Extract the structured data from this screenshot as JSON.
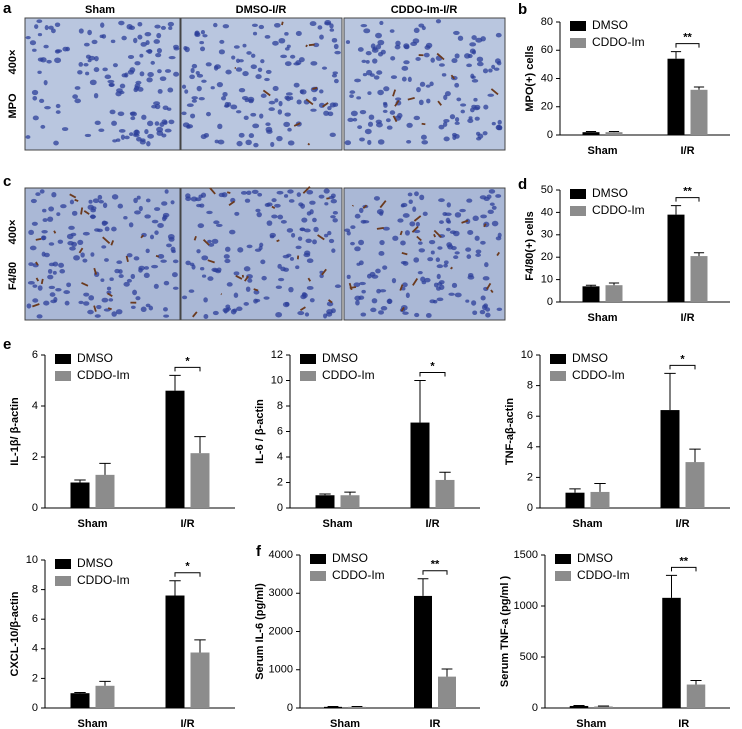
{
  "micrographs": {
    "panel_labels": [
      "a",
      "c"
    ],
    "column_labels": [
      "Sham",
      "DMSO-I/R",
      "CDDO-Im-I/R"
    ],
    "row_labels": [
      {
        "stain": "MPO",
        "magnification": "400×"
      },
      {
        "stain": "F4/80",
        "magnification": "400×"
      }
    ]
  },
  "chart_data": [
    {
      "type": "bar",
      "panel_label": "b",
      "ylabel": "MPO(+) cells",
      "categories": [
        "Sham",
        "I/R"
      ],
      "series": [
        {
          "name": "DMSO",
          "color": "#000000",
          "values": [
            2,
            54
          ],
          "errors": [
            0.5,
            5
          ]
        },
        {
          "name": "CDDO-Im",
          "color": "#8c8c8c",
          "values": [
            2,
            32
          ],
          "errors": [
            0.5,
            2
          ]
        }
      ],
      "ylim": [
        0,
        80
      ],
      "yticks": [
        0,
        20,
        40,
        60,
        80
      ],
      "annotation": "**"
    },
    {
      "type": "bar",
      "panel_label": "d",
      "ylabel": "F4/80(+) cells",
      "categories": [
        "Sham",
        "I/R"
      ],
      "series": [
        {
          "name": "DMSO",
          "color": "#000000",
          "values": [
            7,
            39
          ],
          "errors": [
            0.5,
            4
          ]
        },
        {
          "name": "CDDO-Im",
          "color": "#8c8c8c",
          "values": [
            7.5,
            20.5
          ],
          "errors": [
            1,
            1.5
          ]
        }
      ],
      "ylim": [
        0,
        50
      ],
      "yticks": [
        0,
        10,
        20,
        30,
        40,
        50
      ],
      "annotation": "**"
    },
    {
      "type": "bar",
      "panel_label": "e",
      "ylabel": "IL-1β/ β-actin",
      "categories": [
        "Sham",
        "I/R"
      ],
      "series": [
        {
          "name": "DMSO",
          "color": "#000000",
          "values": [
            1.0,
            4.6
          ],
          "errors": [
            0.1,
            0.6
          ]
        },
        {
          "name": "CDDO-Im",
          "color": "#8c8c8c",
          "values": [
            1.3,
            2.15
          ],
          "errors": [
            0.45,
            0.65
          ]
        }
      ],
      "ylim": [
        0,
        6
      ],
      "yticks": [
        0,
        2,
        4,
        6
      ],
      "annotation": "*"
    },
    {
      "type": "bar",
      "ylabel": "IL-6 / β-actin",
      "categories": [
        "Sham",
        "I/R"
      ],
      "series": [
        {
          "name": "DMSO",
          "color": "#000000",
          "values": [
            1.0,
            6.7
          ],
          "errors": [
            0.1,
            3.3
          ]
        },
        {
          "name": "CDDO-Im",
          "color": "#8c8c8c",
          "values": [
            1.0,
            2.2
          ],
          "errors": [
            0.25,
            0.6
          ]
        }
      ],
      "ylim": [
        0,
        12
      ],
      "yticks": [
        0,
        2,
        4,
        6,
        8,
        10,
        12
      ],
      "annotation": "*"
    },
    {
      "type": "bar",
      "ylabel": "TNF-aβ-actin",
      "categories": [
        "Sham",
        "I/R"
      ],
      "series": [
        {
          "name": "DMSO",
          "color": "#000000",
          "values": [
            1.0,
            6.4
          ],
          "errors": [
            0.25,
            2.4
          ]
        },
        {
          "name": "CDDO-Im",
          "color": "#8c8c8c",
          "values": [
            1.05,
            3.0
          ],
          "errors": [
            0.55,
            0.85
          ]
        }
      ],
      "ylim": [
        0,
        10
      ],
      "yticks": [
        0,
        2,
        4,
        6,
        8,
        10
      ],
      "annotation": "*"
    },
    {
      "type": "bar",
      "ylabel": "CXCL-10/β-actin",
      "categories": [
        "Sham",
        "I/R"
      ],
      "series": [
        {
          "name": "DMSO",
          "color": "#000000",
          "values": [
            1.0,
            7.6
          ],
          "errors": [
            0.05,
            1.0
          ]
        },
        {
          "name": "CDDO-Im",
          "color": "#8c8c8c",
          "values": [
            1.5,
            3.75
          ],
          "errors": [
            0.3,
            0.85
          ]
        }
      ],
      "ylim": [
        0,
        10
      ],
      "yticks": [
        0,
        2,
        4,
        6,
        8,
        10
      ],
      "annotation": "*"
    },
    {
      "type": "bar",
      "panel_label": "f",
      "ylabel": "Serum IL-6 (pg/ml)",
      "categories": [
        "Sham",
        "IR"
      ],
      "series": [
        {
          "name": "DMSO",
          "color": "#000000",
          "values": [
            30,
            2930
          ],
          "errors": [
            10,
            450
          ]
        },
        {
          "name": "CDDO-Im",
          "color": "#8c8c8c",
          "values": [
            30,
            820
          ],
          "errors": [
            10,
            200
          ]
        }
      ],
      "ylim": [
        0,
        4000
      ],
      "yticks": [
        0,
        1000,
        2000,
        3000,
        4000
      ],
      "annotation": "**"
    },
    {
      "type": "bar",
      "ylabel": "Serum TNF-a (pg/ml )",
      "categories": [
        "Sham",
        "IR"
      ],
      "series": [
        {
          "name": "DMSO",
          "color": "#000000",
          "values": [
            20,
            1080
          ],
          "errors": [
            5,
            220
          ]
        },
        {
          "name": "CDDO-Im",
          "color": "#8c8c8c",
          "values": [
            15,
            230
          ],
          "errors": [
            5,
            40
          ]
        }
      ],
      "ylim": [
        0,
        1500
      ],
      "yticks": [
        0,
        500,
        1000,
        1500
      ],
      "annotation": "**"
    }
  ]
}
